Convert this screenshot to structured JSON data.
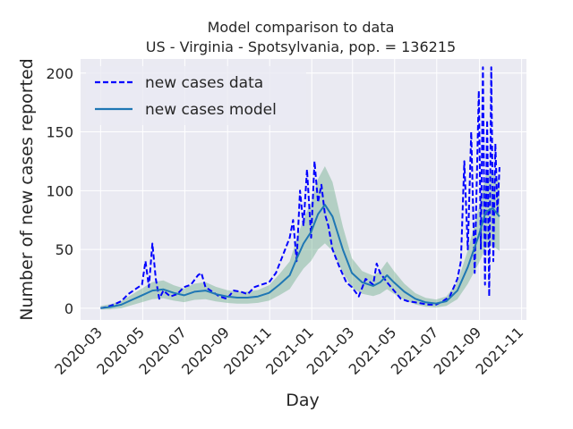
{
  "chart_data": {
    "type": "line",
    "title_lines": [
      "Model comparison to data",
      "US - Virginia - Spotsylvania, pop. = 136215"
    ],
    "xlabel": "Day",
    "ylabel": "Number of new cases reported",
    "xlim": [
      "2020-02-01",
      "2021-11-08"
    ],
    "ylim": [
      -10,
      212
    ],
    "x_ticks": [
      "2020-03",
      "2020-05",
      "2020-07",
      "2020-09",
      "2020-11",
      "2021-01",
      "2021-03",
      "2021-05",
      "2021-07",
      "2021-09",
      "2021-11"
    ],
    "y_ticks": [
      0,
      50,
      100,
      150,
      200
    ],
    "grid": true,
    "legend_position": "top-left",
    "legend": [
      {
        "label": "new cases data",
        "style": "dashed",
        "color": "#0000ff"
      },
      {
        "label": "new cases model",
        "style": "solid",
        "color": "#1f77b4"
      }
    ],
    "series": [
      {
        "name": "new cases data",
        "style": "dashed",
        "color": "#0000ff",
        "x": [
          "2020-03-01",
          "2020-03-10",
          "2020-03-20",
          "2020-03-31",
          "2020-04-10",
          "2020-04-20",
          "2020-04-30",
          "2020-05-05",
          "2020-05-10",
          "2020-05-15",
          "2020-05-20",
          "2020-05-25",
          "2020-05-31",
          "2020-06-10",
          "2020-06-20",
          "2020-06-30",
          "2020-07-10",
          "2020-07-20",
          "2020-07-25",
          "2020-07-31",
          "2020-08-10",
          "2020-08-20",
          "2020-08-31",
          "2020-09-10",
          "2020-09-20",
          "2020-09-30",
          "2020-10-10",
          "2020-10-20",
          "2020-10-31",
          "2020-11-10",
          "2020-11-20",
          "2020-11-30",
          "2020-12-05",
          "2020-12-10",
          "2020-12-15",
          "2020-12-20",
          "2020-12-25",
          "2020-12-31",
          "2021-01-05",
          "2021-01-10",
          "2021-01-15",
          "2021-01-20",
          "2021-01-25",
          "2021-01-31",
          "2021-02-10",
          "2021-02-20",
          "2021-02-28",
          "2021-03-10",
          "2021-03-20",
          "2021-03-31",
          "2021-04-05",
          "2021-04-10",
          "2021-04-20",
          "2021-04-30",
          "2021-05-10",
          "2021-05-20",
          "2021-05-31",
          "2021-06-10",
          "2021-06-20",
          "2021-06-30",
          "2021-07-10",
          "2021-07-20",
          "2021-07-31",
          "2021-08-05",
          "2021-08-10",
          "2021-08-15",
          "2021-08-20",
          "2021-08-25",
          "2021-08-31",
          "2021-09-03",
          "2021-09-06",
          "2021-09-09",
          "2021-09-12",
          "2021-09-15",
          "2021-09-18",
          "2021-09-21",
          "2021-09-24",
          "2021-09-27",
          "2021-09-30"
        ],
        "values": [
          0,
          1,
          3,
          6,
          12,
          16,
          20,
          40,
          18,
          55,
          25,
          8,
          15,
          10,
          12,
          18,
          20,
          28,
          30,
          18,
          14,
          10,
          8,
          15,
          14,
          12,
          18,
          20,
          22,
          30,
          45,
          60,
          75,
          40,
          100,
          70,
          118,
          60,
          125,
          90,
          105,
          80,
          70,
          50,
          35,
          22,
          18,
          10,
          25,
          20,
          38,
          30,
          22,
          15,
          8,
          6,
          5,
          4,
          3,
          3,
          6,
          10,
          25,
          40,
          125,
          50,
          150,
          30,
          185,
          50,
          205,
          20,
          160,
          10,
          205,
          40,
          140,
          80,
          120
        ]
      },
      {
        "name": "new cases model",
        "style": "solid",
        "color": "#1f77b4",
        "x": [
          "2020-03-01",
          "2020-03-15",
          "2020-03-31",
          "2020-04-15",
          "2020-04-30",
          "2020-05-15",
          "2020-05-31",
          "2020-06-15",
          "2020-06-30",
          "2020-07-15",
          "2020-07-31",
          "2020-08-15",
          "2020-08-31",
          "2020-09-15",
          "2020-09-30",
          "2020-10-15",
          "2020-10-31",
          "2020-11-15",
          "2020-11-30",
          "2020-12-10",
          "2020-12-20",
          "2020-12-31",
          "2021-01-10",
          "2021-01-20",
          "2021-01-31",
          "2021-02-15",
          "2021-02-28",
          "2021-03-15",
          "2021-03-31",
          "2021-04-10",
          "2021-04-20",
          "2021-04-30",
          "2021-05-15",
          "2021-05-31",
          "2021-06-15",
          "2021-06-30",
          "2021-07-15",
          "2021-07-31",
          "2021-08-15",
          "2021-08-31",
          "2021-09-10",
          "2021-09-20",
          "2021-09-30"
        ],
        "values": [
          0,
          1,
          3,
          7,
          11,
          15,
          16,
          13,
          11,
          14,
          15,
          12,
          10,
          9,
          9,
          10,
          13,
          20,
          28,
          42,
          55,
          65,
          80,
          88,
          78,
          50,
          30,
          22,
          19,
          22,
          28,
          22,
          14,
          8,
          5,
          4,
          6,
          15,
          35,
          62,
          82,
          85,
          78
        ]
      }
    ]
  }
}
